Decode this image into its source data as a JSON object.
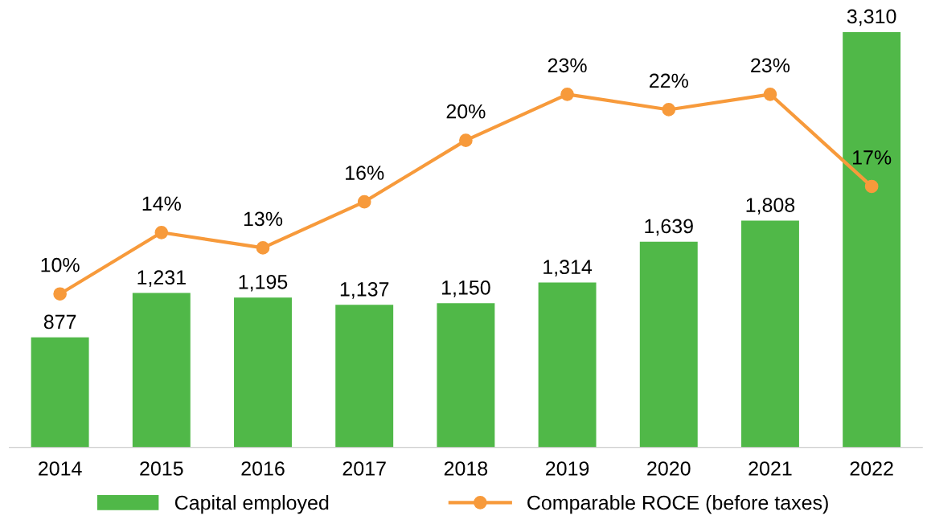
{
  "chart_data": {
    "type": "bar",
    "categories": [
      "2014",
      "2015",
      "2016",
      "2017",
      "2018",
      "2019",
      "2020",
      "2021",
      "2022"
    ],
    "series": [
      {
        "name": "Capital employed",
        "color": "#50b848",
        "values": [
          877,
          1231,
          1195,
          1137,
          1150,
          1314,
          1639,
          1808,
          3310
        ],
        "value_labels": [
          "877",
          "1,231",
          "1,195",
          "1,137",
          "1,150",
          "1,314",
          "1,639",
          "1,808",
          "3,310"
        ]
      },
      {
        "name": "Comparable ROCE (before taxes)",
        "type": "line",
        "axis": "y2",
        "color": "#f79a3b",
        "marker": "circle",
        "values": [
          10,
          14,
          13,
          16,
          20,
          23,
          22,
          23,
          17
        ],
        "value_labels": [
          "10%",
          "14%",
          "13%",
          "16%",
          "20%",
          "23%",
          "22%",
          "23%",
          "17%"
        ]
      }
    ],
    "legend": "bottom",
    "grid": false,
    "tick_labels": "x"
  }
}
